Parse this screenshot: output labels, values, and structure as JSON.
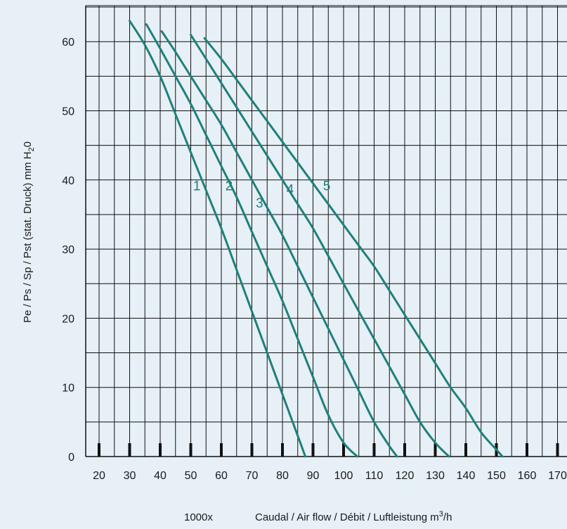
{
  "chart_data": {
    "type": "line",
    "title": "",
    "ylabel": "Pe / Ps / Sp / Pst (stat. Druck) mm H",
    "ylabel_sub": "2",
    "ylabel_tail": "0",
    "xlabel_prefix": "1000x",
    "xlabel": "Caudal / Air flow / Débit / Luftleistung m",
    "xlabel_sup": "3",
    "xlabel_tail": "/h",
    "xlim": [
      20,
      170
    ],
    "ylim": [
      0,
      65
    ],
    "x_ticks": [
      20,
      30,
      40,
      50,
      60,
      70,
      80,
      90,
      100,
      110,
      120,
      130,
      140,
      150,
      160,
      170
    ],
    "y_ticks": [
      0,
      10,
      20,
      30,
      40,
      50,
      60
    ],
    "grid": true,
    "line_color": "#1f7f7a",
    "series": [
      {
        "name": "1",
        "label_at": [
          52,
          38.5
        ],
        "points": [
          [
            30,
            63
          ],
          [
            35,
            59.5
          ],
          [
            40,
            55
          ],
          [
            45,
            49.5
          ],
          [
            50,
            44
          ],
          [
            55,
            38.5
          ],
          [
            60,
            33
          ],
          [
            65,
            27
          ],
          [
            70,
            21
          ],
          [
            75,
            15
          ],
          [
            80,
            9
          ],
          [
            85,
            3
          ],
          [
            87.5,
            0
          ]
        ]
      },
      {
        "name": "2",
        "label_at": [
          62.5,
          38.5
        ],
        "points": [
          [
            35.5,
            62.5
          ],
          [
            40,
            59
          ],
          [
            45,
            55
          ],
          [
            50,
            51
          ],
          [
            55,
            46.5
          ],
          [
            60,
            42
          ],
          [
            65,
            37.5
          ],
          [
            70,
            32.5
          ],
          [
            75,
            27.5
          ],
          [
            80,
            22.5
          ],
          [
            85,
            17
          ],
          [
            90,
            11.5
          ],
          [
            95,
            6
          ],
          [
            100,
            2
          ],
          [
            104.5,
            0
          ]
        ]
      },
      {
        "name": "3",
        "label_at": [
          72.5,
          36
        ],
        "points": [
          [
            40.5,
            61.5
          ],
          [
            45,
            58.5
          ],
          [
            50,
            55
          ],
          [
            55,
            51.5
          ],
          [
            60,
            48
          ],
          [
            65,
            44
          ],
          [
            70,
            40
          ],
          [
            75,
            36
          ],
          [
            80,
            32
          ],
          [
            85,
            27.5
          ],
          [
            90,
            23
          ],
          [
            95,
            18.5
          ],
          [
            100,
            14
          ],
          [
            105,
            9.5
          ],
          [
            110,
            5
          ],
          [
            115,
            1.5
          ],
          [
            117.5,
            0
          ]
        ]
      },
      {
        "name": "4",
        "label_at": [
          82.5,
          38
        ],
        "points": [
          [
            50,
            61
          ],
          [
            55,
            57.5
          ],
          [
            60,
            54
          ],
          [
            65,
            50.5
          ],
          [
            70,
            47
          ],
          [
            75,
            43.5
          ],
          [
            80,
            40
          ],
          [
            85,
            36.5
          ],
          [
            90,
            33
          ],
          [
            95,
            29
          ],
          [
            100,
            25
          ],
          [
            105,
            21
          ],
          [
            110,
            17
          ],
          [
            115,
            13
          ],
          [
            120,
            9
          ],
          [
            125,
            5
          ],
          [
            130,
            2
          ],
          [
            134.5,
            0
          ]
        ]
      },
      {
        "name": "5",
        "label_at": [
          94.5,
          38.5
        ],
        "points": [
          [
            54.5,
            60.5
          ],
          [
            60,
            57.5
          ],
          [
            65,
            54.5
          ],
          [
            70,
            51.5
          ],
          [
            75,
            48.5
          ],
          [
            80,
            45.5
          ],
          [
            85,
            42.5
          ],
          [
            90,
            39.5
          ],
          [
            95,
            36.5
          ],
          [
            100,
            33.5
          ],
          [
            105,
            30.5
          ],
          [
            110,
            27.5
          ],
          [
            115,
            24
          ],
          [
            120,
            20.5
          ],
          [
            125,
            17
          ],
          [
            130,
            13.5
          ],
          [
            135,
            10
          ],
          [
            140,
            7
          ],
          [
            145,
            3.5
          ],
          [
            150,
            1
          ],
          [
            152,
            0
          ]
        ]
      }
    ]
  }
}
